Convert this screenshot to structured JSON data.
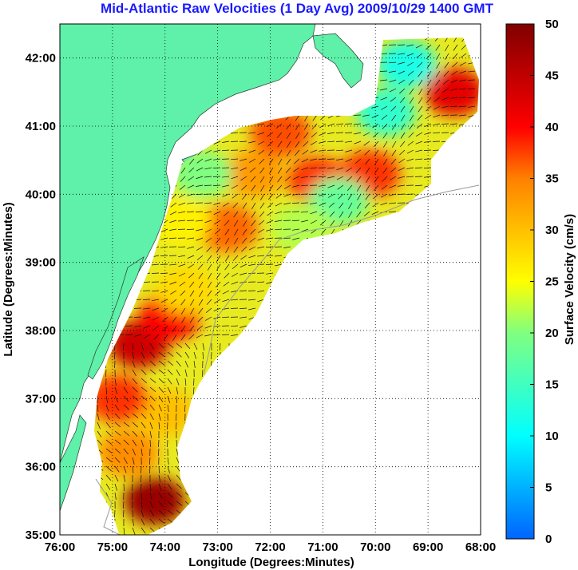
{
  "chart_data": {
    "type": "heatmap",
    "title": "Mid-Atlantic Raw Velocities (1 Day Avg) 2009/10/29 1400 GMT",
    "xlabel": "Longitude (Degrees:Minutes)",
    "ylabel": "Latitude (Degrees:Minutes)",
    "xlim": [
      -76,
      -68
    ],
    "ylim": [
      35,
      42.5
    ],
    "x_ticks": [
      {
        "value": -76,
        "label": "76:00"
      },
      {
        "value": -75,
        "label": "75:00"
      },
      {
        "value": -74,
        "label": "74:00"
      },
      {
        "value": -73,
        "label": "73:00"
      },
      {
        "value": -72,
        "label": "72:00"
      },
      {
        "value": -71,
        "label": "71:00"
      },
      {
        "value": -70,
        "label": "70:00"
      },
      {
        "value": -69,
        "label": "69:00"
      },
      {
        "value": -68,
        "label": "68:00"
      }
    ],
    "y_ticks": [
      {
        "value": 35,
        "label": "35:00"
      },
      {
        "value": 36,
        "label": "36:00"
      },
      {
        "value": 37,
        "label": "37:00"
      },
      {
        "value": 38,
        "label": "38:00"
      },
      {
        "value": 39,
        "label": "39:00"
      },
      {
        "value": 40,
        "label": "40:00"
      },
      {
        "value": 41,
        "label": "41:00"
      },
      {
        "value": 42,
        "label": "42:00"
      }
    ],
    "grid": true,
    "colorbar": {
      "label": "Surface Velocity (cm/s)",
      "range": [
        0,
        50
      ],
      "ticks": [
        {
          "value": 0,
          "label": "0"
        },
        {
          "value": 5,
          "label": "5"
        },
        {
          "value": 10,
          "label": "10"
        },
        {
          "value": 15,
          "label": "15"
        },
        {
          "value": 20,
          "label": "20"
        },
        {
          "value": 25,
          "label": "25"
        },
        {
          "value": 30,
          "label": "30"
        },
        {
          "value": 35,
          "label": "35"
        },
        {
          "value": 40,
          "label": "40"
        },
        {
          "value": 45,
          "label": "45"
        },
        {
          "value": 50,
          "label": "50"
        }
      ]
    },
    "field_regions": [
      {
        "lon": -74.5,
        "lat": 37.8,
        "speed": 44
      },
      {
        "lon": -73.9,
        "lat": 38.2,
        "speed": 40
      },
      {
        "lon": -74.2,
        "lat": 35.5,
        "speed": 48
      },
      {
        "lon": -74.7,
        "lat": 36.2,
        "speed": 34
      },
      {
        "lon": -72.8,
        "lat": 39.5,
        "speed": 36
      },
      {
        "lon": -72.3,
        "lat": 40.3,
        "speed": 33
      },
      {
        "lon": -71.8,
        "lat": 40.9,
        "speed": 37
      },
      {
        "lon": -71.1,
        "lat": 40.2,
        "speed": 38
      },
      {
        "lon": -70.1,
        "lat": 40.3,
        "speed": 38
      },
      {
        "lon": -73.3,
        "lat": 40.3,
        "speed": 20
      },
      {
        "lon": -73.7,
        "lat": 39.6,
        "speed": 26
      },
      {
        "lon": -70.7,
        "lat": 39.9,
        "speed": 18
      },
      {
        "lon": -69.8,
        "lat": 41.2,
        "speed": 14
      },
      {
        "lon": -69.4,
        "lat": 41.9,
        "speed": 12
      },
      {
        "lon": -68.5,
        "lat": 41.5,
        "speed": 42
      },
      {
        "lon": -74.0,
        "lat": 36.8,
        "speed": 30
      },
      {
        "lon": -74.9,
        "lat": 37.0,
        "speed": 38
      },
      {
        "lon": -73.6,
        "lat": 38.6,
        "speed": 28
      },
      {
        "lon": -71.4,
        "lat": 39.5,
        "speed": 22
      }
    ]
  }
}
